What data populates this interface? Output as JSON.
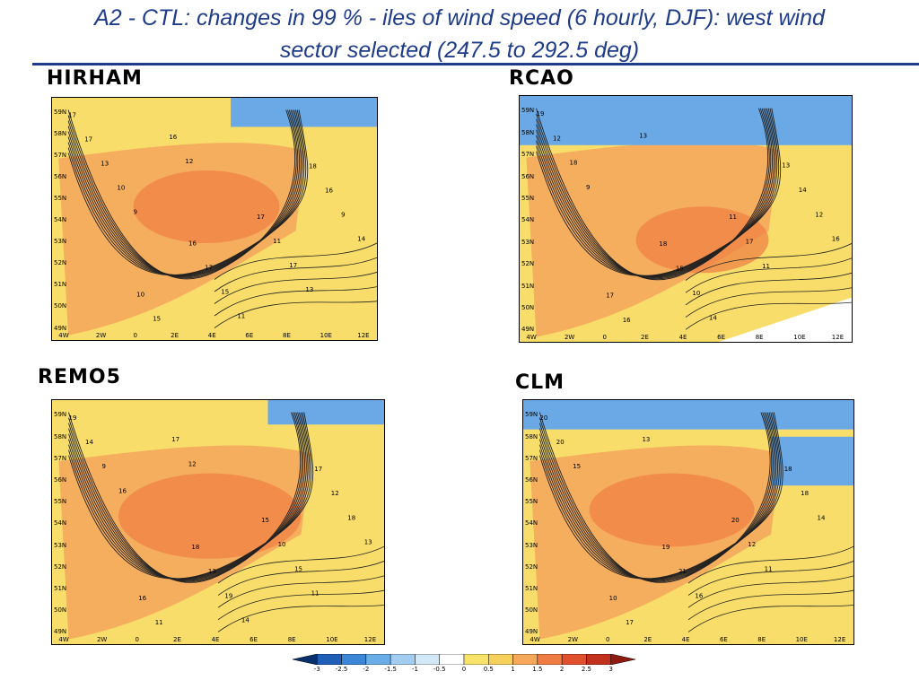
{
  "title_line1": "A2 - CTL: changes in 99 % - iles of wind speed (6 hourly, DJF): west wind",
  "title_line2": "sector selected (247.5 to 292.5 deg)",
  "panels": [
    {
      "label": "HIRHAM",
      "contour_labels": [
        "17",
        "16",
        "18",
        "10",
        "17",
        "17",
        "17",
        "16",
        "15",
        "11",
        "13",
        "15",
        "9",
        "16",
        "17",
        "10",
        "11",
        "14",
        "12",
        "13",
        "9"
      ]
    },
    {
      "label": "RCAO",
      "contour_labels": [
        "19",
        "18",
        "13",
        "17",
        "11",
        "12",
        "15",
        "14",
        "16",
        "17",
        "18",
        "10",
        "12",
        "13",
        "11",
        "9",
        "14",
        "16"
      ]
    },
    {
      "label": "REMO5",
      "contour_labels": [
        "19",
        "18",
        "17",
        "16",
        "15",
        "14",
        "13",
        "12",
        "11",
        "10",
        "9",
        "19",
        "18",
        "17",
        "15",
        "16",
        "14",
        "13",
        "12",
        "11"
      ]
    },
    {
      "label": "CLM",
      "contour_labels": [
        "20",
        "19",
        "18",
        "10",
        "20",
        "20",
        "21",
        "18",
        "17",
        "12",
        "15",
        "16",
        "14",
        "13",
        "11"
      ]
    }
  ],
  "lat_labels": [
    "59N",
    "58N",
    "57N",
    "56N",
    "55N",
    "54N",
    "53N",
    "52N",
    "51N",
    "50N",
    "49N"
  ],
  "lon_labels": [
    "4W",
    "2W",
    "0",
    "2E",
    "4E",
    "6E",
    "8E",
    "10E",
    "12E"
  ],
  "colorbar": {
    "ticks": [
      "-3",
      "-2.5",
      "-2",
      "-1.5",
      "-1",
      "-0.5",
      "0",
      "0.5",
      "1",
      "1.5",
      "2",
      "2.5",
      "3"
    ],
    "colors": [
      "#08306b",
      "#1f5fb8",
      "#3b86d6",
      "#6aaee8",
      "#a3cdf0",
      "#d3e8f6",
      "#ffffff",
      "#f8e36a",
      "#f7cf5c",
      "#f5a75a",
      "#ef7c43",
      "#e0502d",
      "#c1311e",
      "#8e1a10"
    ]
  }
}
